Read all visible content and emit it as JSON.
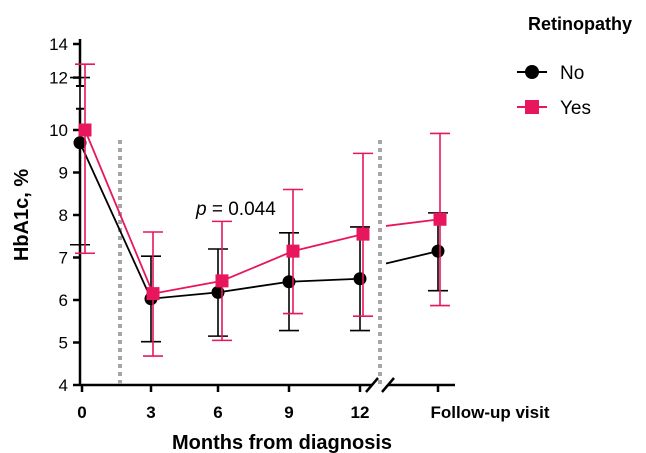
{
  "chart_data": {
    "type": "line",
    "xlabel": "Months from diagnosis",
    "ylabel": "HbA1c, %",
    "x_ticks": [
      "0",
      "3",
      "6",
      "9",
      "12",
      "Follow-up visit"
    ],
    "y_ticks_lower": [
      4,
      5,
      6,
      7,
      8,
      9,
      10
    ],
    "y_ticks_upper": [
      12,
      14
    ],
    "ylim": [
      4,
      14
    ],
    "y_axis_break": [
      10.5,
      11.5
    ],
    "x_axis_break": "between 12 and Follow-up visit",
    "annotation": {
      "italic": "p",
      "text": " = 0.044"
    },
    "legend": {
      "title": "Retinopathy",
      "position": "top-right"
    },
    "series": [
      {
        "name": "No",
        "color": "#000000",
        "marker": "circle",
        "x": [
          "0",
          "3",
          "6",
          "9",
          "12",
          "Follow-up visit"
        ],
        "mean": [
          9.7,
          6.03,
          6.18,
          6.43,
          6.5,
          7.15
        ],
        "err_low": [
          7.3,
          5.02,
          5.15,
          5.28,
          5.28,
          6.22
        ],
        "err_high": [
          12.0,
          7.03,
          7.2,
          7.58,
          7.72,
          8.05
        ]
      },
      {
        "name": "Yes",
        "color": "#E8175D",
        "marker": "square",
        "x": [
          "0",
          "3",
          "6",
          "9",
          "12",
          "Follow-up visit"
        ],
        "mean": [
          10.0,
          6.15,
          6.45,
          7.15,
          7.55,
          7.9
        ],
        "err_low": [
          7.1,
          4.68,
          5.05,
          5.68,
          5.62,
          5.87
        ],
        "err_high": [
          12.8,
          7.6,
          7.85,
          8.6,
          9.45,
          9.92
        ]
      }
    ]
  }
}
